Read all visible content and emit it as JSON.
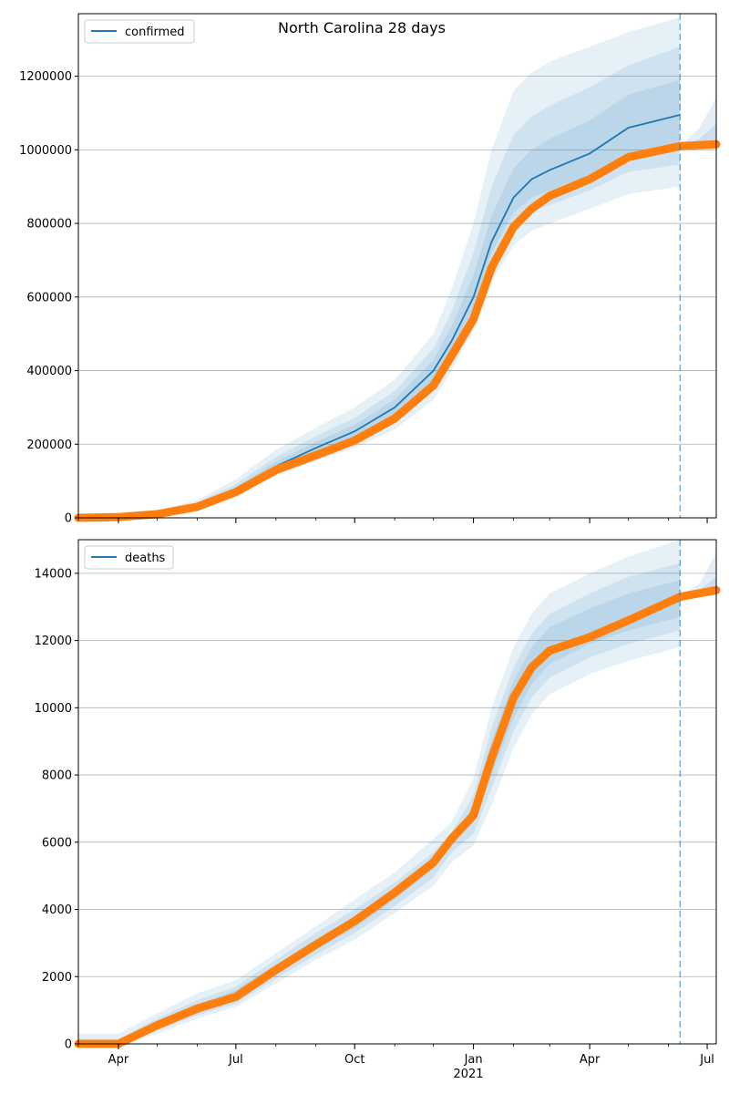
{
  "figure": {
    "title": "North Carolina 28 days",
    "year_label": "2021"
  },
  "colors": {
    "model": "#1f77b4",
    "observed": "#ff7f0e",
    "band": "#1f77b4",
    "grid": "#b0b0b0",
    "axes": "#000000"
  },
  "chart_data": [
    {
      "type": "line",
      "name": "confirmed-panel",
      "legend": "confirmed",
      "x_type": "date",
      "xlim": [
        "2020-03-01",
        "2021-07-08"
      ],
      "x_ticks": [
        {
          "date": "2020-04-01",
          "label": "Apr"
        },
        {
          "date": "2020-07-01",
          "label": "Jul"
        },
        {
          "date": "2020-10-01",
          "label": "Oct"
        },
        {
          "date": "2021-01-01",
          "label": "Jan"
        },
        {
          "date": "2021-04-01",
          "label": "Apr"
        },
        {
          "date": "2021-07-01",
          "label": "Jul"
        }
      ],
      "ylim": [
        0,
        1370000
      ],
      "y_ticks": [
        0,
        200000,
        400000,
        600000,
        800000,
        1000000,
        1200000
      ],
      "grid": "horizontal",
      "legend_position": "top-left",
      "forecast_date": "2021-06-10",
      "model": {
        "dates": [
          "2020-03-01",
          "2020-04-01",
          "2020-05-01",
          "2020-06-01",
          "2020-07-01",
          "2020-08-01",
          "2020-09-01",
          "2020-10-01",
          "2020-11-01",
          "2020-12-01",
          "2020-12-15",
          "2021-01-01",
          "2021-01-15",
          "2021-02-01",
          "2021-02-15",
          "2021-03-01",
          "2021-04-01",
          "2021-05-01",
          "2021-06-10"
        ],
        "values": [
          0,
          3000,
          12000,
          33000,
          75000,
          140000,
          190000,
          235000,
          300000,
          400000,
          480000,
          600000,
          750000,
          870000,
          920000,
          945000,
          990000,
          1060000,
          1095000
        ]
      },
      "bands": [
        {
          "dates": [
            "2020-03-01",
            "2020-04-01",
            "2020-05-01",
            "2020-06-01",
            "2020-07-01",
            "2020-08-01",
            "2020-09-01",
            "2020-10-01",
            "2020-11-01",
            "2020-12-01",
            "2020-12-15",
            "2021-01-01",
            "2021-01-15",
            "2021-02-01",
            "2021-02-15",
            "2021-03-01",
            "2021-04-01",
            "2021-05-01",
            "2021-06-10"
          ],
          "upper": [
            0,
            5000,
            20000,
            48000,
            105000,
            185000,
            245000,
            300000,
            375000,
            500000,
            620000,
            800000,
            1000000,
            1160000,
            1210000,
            1240000,
            1280000,
            1320000,
            1360000
          ],
          "lower": [
            0,
            2000,
            9000,
            25000,
            58000,
            115000,
            155000,
            190000,
            240000,
            320000,
            400000,
            510000,
            640000,
            740000,
            780000,
            800000,
            840000,
            880000,
            900000
          ]
        },
        {
          "dates": [
            "2020-03-01",
            "2020-04-01",
            "2020-05-01",
            "2020-06-01",
            "2020-07-01",
            "2020-08-01",
            "2020-09-01",
            "2020-10-01",
            "2020-11-01",
            "2020-12-01",
            "2020-12-15",
            "2021-01-01",
            "2021-01-15",
            "2021-02-01",
            "2021-02-15",
            "2021-03-01",
            "2021-04-01",
            "2021-05-01",
            "2021-06-10"
          ],
          "upper": [
            0,
            4000,
            16000,
            42000,
            92000,
            165000,
            222000,
            272000,
            345000,
            460000,
            560000,
            720000,
            900000,
            1040000,
            1090000,
            1120000,
            1170000,
            1230000,
            1280000
          ],
          "lower": [
            0,
            2500,
            10000,
            28000,
            64000,
            125000,
            168000,
            205000,
            262000,
            350000,
            430000,
            550000,
            690000,
            790000,
            830000,
            850000,
            890000,
            940000,
            960000
          ]
        },
        {
          "dates": [
            "2020-03-01",
            "2020-04-01",
            "2020-05-01",
            "2020-06-01",
            "2020-07-01",
            "2020-08-01",
            "2020-09-01",
            "2020-10-01",
            "2020-11-01",
            "2020-12-01",
            "2020-12-15",
            "2021-01-01",
            "2021-01-15",
            "2021-02-01",
            "2021-02-15",
            "2021-03-01",
            "2021-04-01",
            "2021-05-01",
            "2021-06-10"
          ],
          "upper": [
            0,
            3500,
            14000,
            37000,
            83000,
            153000,
            206000,
            253000,
            322000,
            430000,
            520000,
            660000,
            820000,
            950000,
            1000000,
            1030000,
            1080000,
            1150000,
            1190000
          ],
          "lower": [
            0,
            2800,
            11000,
            30000,
            68000,
            130000,
            176000,
            217000,
            280000,
            375000,
            450000,
            570000,
            720000,
            830000,
            870000,
            890000,
            930000,
            990000,
            1020000
          ]
        }
      ],
      "forecast_bands": [
        {
          "dates": [
            "2021-06-10",
            "2021-06-25",
            "2021-07-08"
          ],
          "upper": [
            1010000,
            1060000,
            1140000
          ],
          "lower": [
            1000000,
            1005000,
            1010000
          ]
        },
        {
          "dates": [
            "2021-06-10",
            "2021-06-25",
            "2021-07-08"
          ],
          "upper": [
            1008000,
            1030000,
            1070000
          ],
          "lower": [
            1002000,
            1006000,
            1012000
          ]
        }
      ],
      "observed": {
        "dates": [
          "2020-03-01",
          "2020-04-01",
          "2020-05-01",
          "2020-06-01",
          "2020-07-01",
          "2020-08-01",
          "2020-09-01",
          "2020-10-01",
          "2020-11-01",
          "2020-12-01",
          "2020-12-15",
          "2021-01-01",
          "2021-01-15",
          "2021-02-01",
          "2021-02-15",
          "2021-03-01",
          "2021-04-01",
          "2021-05-01",
          "2021-06-10",
          "2021-07-08"
        ],
        "values": [
          0,
          2000,
          10000,
          30000,
          70000,
          130000,
          170000,
          210000,
          270000,
          360000,
          440000,
          540000,
          680000,
          790000,
          840000,
          875000,
          920000,
          980000,
          1010000,
          1015000
        ]
      }
    },
    {
      "type": "line",
      "name": "deaths-panel",
      "legend": "deaths",
      "x_type": "date",
      "xlim": [
        "2020-03-01",
        "2021-07-08"
      ],
      "x_ticks": [
        {
          "date": "2020-04-01",
          "label": "Apr"
        },
        {
          "date": "2020-07-01",
          "label": "Jul"
        },
        {
          "date": "2020-10-01",
          "label": "Oct"
        },
        {
          "date": "2021-01-01",
          "label": "Jan"
        },
        {
          "date": "2021-04-01",
          "label": "Apr"
        },
        {
          "date": "2021-07-01",
          "label": "Jul"
        }
      ],
      "ylim": [
        0,
        15000
      ],
      "y_ticks": [
        0,
        2000,
        4000,
        6000,
        8000,
        10000,
        12000,
        14000
      ],
      "grid": "horizontal",
      "legend_position": "top-left",
      "forecast_date": "2021-06-10",
      "model": null,
      "bands": [
        {
          "dates": [
            "2020-03-01",
            "2020-04-01",
            "2020-05-01",
            "2020-06-01",
            "2020-07-01",
            "2020-08-01",
            "2020-09-01",
            "2020-10-01",
            "2020-11-01",
            "2020-12-01",
            "2020-12-15",
            "2021-01-01",
            "2021-01-15",
            "2021-02-01",
            "2021-02-15",
            "2021-03-01",
            "2021-04-01",
            "2021-05-01",
            "2021-06-10"
          ],
          "upper": [
            300,
            300,
            900,
            1500,
            1900,
            2700,
            3500,
            4300,
            5100,
            6100,
            6600,
            7900,
            10000,
            11800,
            12800,
            13400,
            14000,
            14500,
            15000
          ],
          "lower": [
            0,
            0,
            300,
            750,
            1100,
            1800,
            2500,
            3100,
            3900,
            4700,
            5400,
            5900,
            7100,
            8800,
            9800,
            10400,
            11000,
            11400,
            11800
          ]
        },
        {
          "dates": [
            "2020-03-01",
            "2020-04-01",
            "2020-05-01",
            "2020-06-01",
            "2020-07-01",
            "2020-08-01",
            "2020-09-01",
            "2020-10-01",
            "2020-11-01",
            "2020-12-01",
            "2020-12-15",
            "2021-01-01",
            "2021-01-15",
            "2021-02-01",
            "2021-02-15",
            "2021-03-01",
            "2021-04-01",
            "2021-05-01",
            "2021-06-10"
          ],
          "upper": [
            150,
            150,
            750,
            1300,
            1700,
            2500,
            3300,
            4000,
            4800,
            5700,
            6300,
            7400,
            9400,
            11200,
            12200,
            12800,
            13400,
            13900,
            14300
          ],
          "lower": [
            0,
            0,
            400,
            850,
            1200,
            1950,
            2650,
            3300,
            4100,
            4950,
            5700,
            6250,
            7600,
            9300,
            10300,
            10900,
            11500,
            11900,
            12300
          ]
        },
        {
          "dates": [
            "2020-03-01",
            "2020-04-01",
            "2020-05-01",
            "2020-06-01",
            "2020-07-01",
            "2020-08-01",
            "2020-09-01",
            "2020-10-01",
            "2020-11-01",
            "2020-12-01",
            "2020-12-15",
            "2021-01-01",
            "2021-01-15",
            "2021-02-01",
            "2021-02-15",
            "2021-03-01",
            "2021-04-01",
            "2021-05-01",
            "2021-06-10"
          ],
          "upper": [
            80,
            80,
            650,
            1150,
            1600,
            2350,
            3100,
            3800,
            4600,
            5450,
            6100,
            7100,
            9000,
            10800,
            11800,
            12400,
            12950,
            13400,
            13800
          ],
          "lower": [
            0,
            0,
            500,
            950,
            1300,
            2100,
            2800,
            3450,
            4300,
            5200,
            5900,
            6600,
            8000,
            9700,
            10700,
            11300,
            11900,
            12300,
            12700
          ]
        }
      ],
      "forecast_bands": [
        {
          "dates": [
            "2021-06-10",
            "2021-06-25",
            "2021-07-08"
          ],
          "upper": [
            13300,
            13700,
            14600
          ],
          "lower": [
            13200,
            13300,
            13350
          ]
        },
        {
          "dates": [
            "2021-06-10",
            "2021-06-25",
            "2021-07-08"
          ],
          "upper": [
            13280,
            13500,
            13900
          ],
          "lower": [
            13220,
            13320,
            13400
          ]
        }
      ],
      "observed": {
        "dates": [
          "2020-03-01",
          "2020-04-01",
          "2020-05-01",
          "2020-06-01",
          "2020-07-01",
          "2020-08-01",
          "2020-09-01",
          "2020-10-01",
          "2020-11-01",
          "2020-12-01",
          "2020-12-15",
          "2021-01-01",
          "2021-01-15",
          "2021-02-01",
          "2021-02-15",
          "2021-03-01",
          "2021-04-01",
          "2021-05-01",
          "2021-06-10",
          "2021-07-08"
        ],
        "values": [
          0,
          0,
          550,
          1050,
          1400,
          2200,
          2950,
          3650,
          4500,
          5400,
          6100,
          6800,
          8500,
          10300,
          11200,
          11700,
          12100,
          12600,
          13300,
          13500
        ]
      }
    }
  ]
}
